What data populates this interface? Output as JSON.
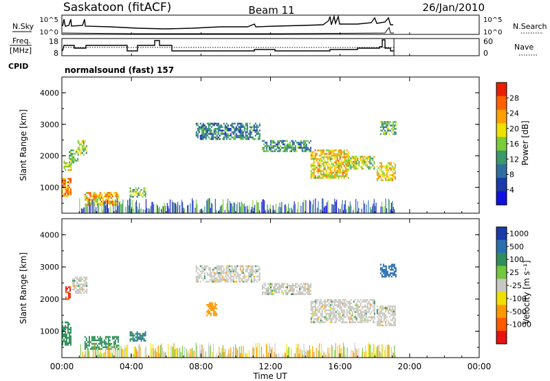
{
  "header": {
    "station": "Saskatoon (fitACF)",
    "beam": "Beam 11",
    "date": "26/Jan/2010"
  },
  "strips": {
    "nsky_label": "N.Sky",
    "nsky_ticks": [
      "10^5",
      "10^0"
    ],
    "nsearch_label": "N.Search",
    "nsearch_ticks": [
      "10^5",
      "10^0"
    ],
    "freq_label_1": "Freq.",
    "freq_label_2": "[MHz]",
    "freq_ticks": [
      "18",
      "8"
    ],
    "nave_label": "Nave",
    "nave_ticks": [
      "60",
      "0"
    ],
    "cpid_label": "CPID",
    "cpid_value": "normalsound (fast) 157"
  },
  "colors": {
    "power_scale": [
      "#1010e0",
      "#1a3aa8",
      "#2f6fa0",
      "#3a9a6a",
      "#7acc3a",
      "#f0e000",
      "#ffa000",
      "#ff6000",
      "#e82000"
    ],
    "velocity_scale": [
      "#1a3aa8",
      "#2b6fb0",
      "#2f8f5a",
      "#74c640",
      "#c8c8c0",
      "#f0e000",
      "#ff9800",
      "#ff5a00",
      "#e81010"
    ]
  },
  "chart_data": [
    {
      "type": "heatmap",
      "name": "power",
      "xlabel": "Time UT",
      "ylabel": "Slant Range [km]",
      "ylim": [
        180,
        4500
      ],
      "xlim": [
        0,
        24
      ],
      "x_ticks": [
        "00:00",
        "04:00",
        "08:00",
        "12:00",
        "16:00",
        "20:00",
        "00:00"
      ],
      "y_ticks": [
        "1000",
        "2000",
        "3000",
        "4000"
      ],
      "colorbar_label": "Power [dB]",
      "colorbar_ticks": [
        "4",
        "8",
        "12",
        "16",
        "20",
        "24",
        "28"
      ],
      "regions": [
        {
          "t0": 0.0,
          "t1": 0.5,
          "r0": 700,
          "r1": 1300,
          "value": 24
        },
        {
          "t0": 0.1,
          "t1": 0.5,
          "r0": 1550,
          "r1": 1850,
          "value": 18
        },
        {
          "t0": 0.4,
          "t1": 0.9,
          "r0": 1800,
          "r1": 2200,
          "value": 14
        },
        {
          "t0": 0.9,
          "t1": 1.4,
          "r0": 2050,
          "r1": 2500,
          "value": 16
        },
        {
          "t0": 1.3,
          "t1": 3.2,
          "r0": 450,
          "r1": 850,
          "value": 22
        },
        {
          "t0": 3.9,
          "t1": 4.8,
          "r0": 700,
          "r1": 1000,
          "value": 16
        },
        {
          "t0": 7.7,
          "t1": 11.4,
          "r0": 2550,
          "r1": 3050,
          "value": 10
        },
        {
          "t0": 11.5,
          "t1": 14.3,
          "r0": 2150,
          "r1": 2500,
          "value": 12
        },
        {
          "t0": 14.3,
          "t1": 16.5,
          "r0": 1300,
          "r1": 2200,
          "value": 20
        },
        {
          "t0": 16.5,
          "t1": 18.0,
          "r0": 1600,
          "r1": 2000,
          "value": 18
        },
        {
          "t0": 18.1,
          "t1": 19.2,
          "r0": 1200,
          "r1": 1800,
          "value": 20
        },
        {
          "t0": 18.3,
          "t1": 19.2,
          "r0": 2700,
          "r1": 3100,
          "value": 14
        }
      ]
    },
    {
      "type": "heatmap",
      "name": "velocity",
      "xlabel": "Time UT",
      "ylabel": "Slant Range [km]",
      "ylim": [
        180,
        4500
      ],
      "xlim": [
        0,
        24
      ],
      "x_ticks": [
        "00:00",
        "04:00",
        "08:00",
        "12:00",
        "16:00",
        "20:00",
        "00:00"
      ],
      "y_ticks": [
        "1000",
        "2000",
        "3000",
        "4000"
      ],
      "colorbar_label": "Velocity [m s⁻¹]",
      "colorbar_ticks": [
        "1000",
        "500",
        "100",
        "25",
        "-25",
        "-100",
        "-500",
        "-1000"
      ],
      "regions": [
        {
          "t0": 0.0,
          "t1": 0.5,
          "r0": 600,
          "r1": 1300,
          "value": 150
        },
        {
          "t0": 0.2,
          "t1": 0.5,
          "r0": 2000,
          "r1": 2400,
          "value": -1000
        },
        {
          "t0": 0.6,
          "t1": 1.4,
          "r0": 2200,
          "r1": 2700,
          "value": 0
        },
        {
          "t0": 1.3,
          "t1": 3.2,
          "r0": 450,
          "r1": 850,
          "value": 150
        },
        {
          "t0": 3.9,
          "t1": 4.8,
          "r0": 700,
          "r1": 1000,
          "value": 500
        },
        {
          "t0": 8.3,
          "t1": 8.9,
          "r0": 1500,
          "r1": 1900,
          "value": -300
        },
        {
          "t0": 7.7,
          "t1": 11.4,
          "r0": 2550,
          "r1": 3050,
          "value": 0
        },
        {
          "t0": 11.5,
          "t1": 14.3,
          "r0": 2150,
          "r1": 2500,
          "value": 0
        },
        {
          "t0": 14.3,
          "t1": 18.0,
          "r0": 1300,
          "r1": 2000,
          "value": 0
        },
        {
          "t0": 18.1,
          "t1": 19.2,
          "r0": 1200,
          "r1": 1800,
          "value": 0
        },
        {
          "t0": 18.3,
          "t1": 19.2,
          "r0": 2700,
          "r1": 3100,
          "value": 700
        }
      ]
    }
  ]
}
